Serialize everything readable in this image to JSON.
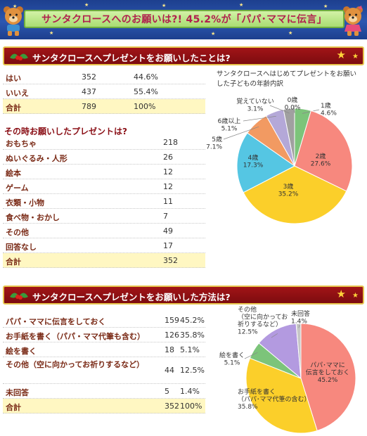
{
  "banner": {
    "title": "サンタクロースへのお願いは?! 45.2%が「パパ･ママに伝言」",
    "colors": {
      "background": "#2c57b0",
      "panel": "#b9e48a",
      "title": "#b0204e"
    }
  },
  "section1": {
    "title": "サンタクロースへプレゼントをお願いしたことは?",
    "rows": [
      {
        "label": "はい",
        "count": "352",
        "percent": "44.6%"
      },
      {
        "label": "いいえ",
        "count": "437",
        "percent": "55.4%"
      },
      {
        "label": "合計",
        "count": "789",
        "percent": "100%",
        "total": true
      }
    ],
    "subheading": "その時お願いしたプレゼントは?",
    "gift_rows": [
      {
        "label": "おもちゃ",
        "count": "218"
      },
      {
        "label": "ぬいぐるみ・人形",
        "count": "26"
      },
      {
        "label": "絵本",
        "count": "12"
      },
      {
        "label": "ゲーム",
        "count": "12"
      },
      {
        "label": "衣類・小物",
        "count": "11"
      },
      {
        "label": "食べ物・おかし",
        "count": "7"
      },
      {
        "label": "その他",
        "count": "49"
      },
      {
        "label": "回答なし",
        "count": "17"
      },
      {
        "label": "合計",
        "count": "352",
        "total": true
      }
    ]
  },
  "section2": {
    "title": "サンタクロースへプレゼントをお願いした方法は?",
    "rows": [
      {
        "label": "パパ・ママに伝言をしておく",
        "count": "159",
        "percent": "45.2%"
      },
      {
        "label": "お手紙を書く（パパ・ママ代筆も含む）",
        "count": "126",
        "percent": "35.8%"
      },
      {
        "label": "絵を書く",
        "count": "18",
        "percent": "5.1%"
      },
      {
        "label": "その他（空に向かってお祈りするなど）",
        "count": "44",
        "percent": "12.5%",
        "wrap": true
      },
      {
        "label": "未回答",
        "count": "5",
        "percent": "1.4%"
      },
      {
        "label": "合計",
        "count": "352",
        "percent": "100%",
        "total": true
      }
    ]
  },
  "chart_data": [
    {
      "type": "pie",
      "caption": "サンタクロースへはじめてプレゼントをお願いした子どもの年齢内訳",
      "slices": [
        {
          "label": "1歳",
          "value": 4.6,
          "value_label": "4.6%",
          "color": "#7cc47a"
        },
        {
          "label": "2歳",
          "value": 27.6,
          "value_label": "27.6%",
          "color": "#f7887e"
        },
        {
          "label": "3歳",
          "value": 35.2,
          "value_label": "35.2%",
          "color": "#fbcf2a"
        },
        {
          "label": "4歳",
          "value": 17.3,
          "value_label": "17.3%",
          "color": "#55c6e3"
        },
        {
          "label": "5歳",
          "value": 7.1,
          "value_label": "7.1%",
          "color": "#f29a62"
        },
        {
          "label": "6歳以上",
          "value": 5.1,
          "value_label": "5.1%",
          "color": "#b4a8d8"
        },
        {
          "label": "覚えていない",
          "value": 3.1,
          "value_label": "3.1%",
          "color": "#a0a0a0"
        },
        {
          "label": "0歳",
          "value": 0.0,
          "value_label": "0.0%",
          "color": "#f5e27a"
        }
      ]
    },
    {
      "type": "pie",
      "slices": [
        {
          "label": "パパ･ママに伝言をしておく",
          "value": 45.2,
          "value_label": "45.2%",
          "color": "#f7887e"
        },
        {
          "label": "お手紙を書く（パパ･ママ代筆の含む）",
          "value": 35.8,
          "value_label": "35.8%",
          "color": "#fbcf2a"
        },
        {
          "label": "絵を書く",
          "value": 5.1,
          "value_label": "5.1%",
          "color": "#7cc47a"
        },
        {
          "label": "その他（空に向かってお祈りするなど）",
          "value": 12.5,
          "value_label": "12.5%",
          "color": "#b39ae0"
        },
        {
          "label": "未回答",
          "value": 1.4,
          "value_label": "1.4%",
          "color": "#c6c6c6"
        }
      ]
    }
  ]
}
